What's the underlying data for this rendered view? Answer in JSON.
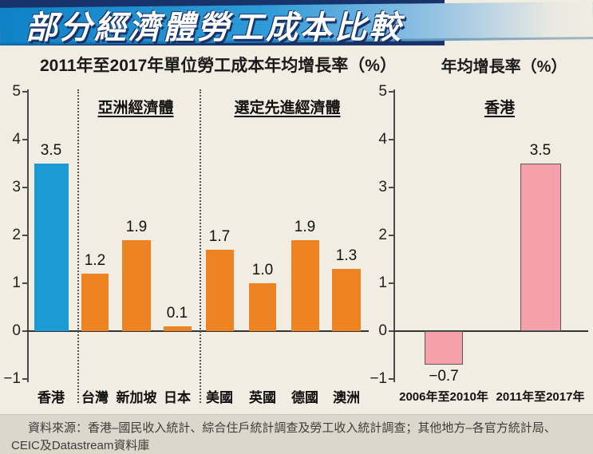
{
  "banner": {
    "title": "部分經濟體勞工成本比較",
    "bg_color": "#2e9bd8",
    "shadow_color": "#17336a",
    "text_color": "#ffffff"
  },
  "chart_data": [
    {
      "type": "bar",
      "title": "2011年至2017年單位勞工成本年均增長率（%）",
      "ylim": [
        -1,
        5
      ],
      "yticks": [
        5,
        4,
        3,
        2,
        1,
        0,
        -1
      ],
      "grid": false,
      "group_labels": [
        "亞洲經濟體",
        "選定先進經濟體"
      ],
      "categories": [
        "香港",
        "台灣",
        "新加坡",
        "日本",
        "美國",
        "英國",
        "德國",
        "澳洲"
      ],
      "values": [
        3.5,
        1.2,
        1.9,
        0.1,
        1.7,
        1.0,
        1.9,
        1.3
      ],
      "bar_colors": [
        "#1b9ad6",
        "#ee8324",
        "#ee8324",
        "#ee8324",
        "#ee8324",
        "#ee8324",
        "#ee8324",
        "#ee8324"
      ]
    },
    {
      "type": "bar",
      "title": "年均增長率（%）",
      "subtitle": "香港",
      "ylim": [
        -1,
        5
      ],
      "yticks": [
        5,
        4,
        3,
        2,
        1,
        0,
        -1
      ],
      "grid": false,
      "categories": [
        "2006年至2010年",
        "2011年至2017年"
      ],
      "values": [
        -0.7,
        3.5
      ],
      "bar_color": "#f5a0aa",
      "bar_border": "#5a5a5a"
    }
  ],
  "footer": {
    "source": "資料來源：香港–國民收入統計、綜合住戶統計調查及勞工收入統計調查；其他地方–各官方統計局、CEIC及Datastream資料庫"
  }
}
